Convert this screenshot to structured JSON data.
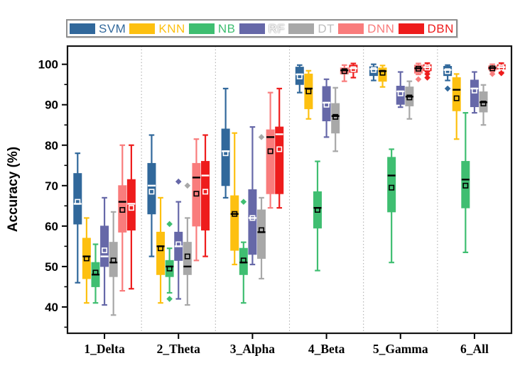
{
  "legend": {
    "items": [
      {
        "label": "SVM",
        "swatch_color": "#31689b",
        "label_color": "#31689b",
        "label_shadow": false
      },
      {
        "label": "KNN",
        "swatch_color": "#fdc010",
        "label_color": "#fdc010",
        "label_shadow": false
      },
      {
        "label": "NB",
        "swatch_color": "#3fbe71",
        "label_color": "#3fbe71",
        "label_shadow": false
      },
      {
        "label": "RF",
        "swatch_color": "#6668a8",
        "label_color": "#f8f8f8",
        "label_shadow": true
      },
      {
        "label": "DT",
        "swatch_color": "#a8a8a8",
        "label_color": "#bdbdbd",
        "label_shadow": false
      },
      {
        "label": "DNN",
        "swatch_color": "#f97c7c",
        "label_color": "#f97c7c",
        "label_shadow": false
      },
      {
        "label": "DBN",
        "swatch_color": "#ee1c1c",
        "label_color": "#ee1c1c",
        "label_shadow": false
      }
    ]
  },
  "chart_data": {
    "type": "boxplot",
    "title": "",
    "xlabel": "",
    "ylabel": "Accuracy (%)",
    "categories": [
      "1_Delta",
      "2_Theta",
      "3_Alpha",
      "4_Beta",
      "5_Gamma",
      "6_All"
    ],
    "yticks": [
      40,
      50,
      60,
      70,
      80,
      90,
      100
    ],
    "yticks_minor": [
      35,
      45,
      55,
      65,
      75,
      85,
      95
    ],
    "ylim": [
      33.5,
      104.5
    ],
    "grid": "dashed vertical separators between categories",
    "legend_position": "top",
    "series": [
      {
        "name": "SVM",
        "color": "#31689b",
        "line": "#ffffff",
        "boxes": [
          {
            "low": 46,
            "q1": 60.5,
            "median": 65.5,
            "q3": 73,
            "high": 78,
            "mean": 66,
            "outliers": []
          },
          {
            "low": 52.5,
            "q1": 63,
            "median": 70,
            "q3": 75.5,
            "high": 82.5,
            "mean": 68.5,
            "outliers": []
          },
          {
            "low": 67,
            "q1": 70,
            "median": 78.5,
            "q3": 84,
            "high": 94,
            "mean": 78,
            "outliers": []
          },
          {
            "low": 93,
            "q1": 95,
            "median": 97.5,
            "q3": 99.3,
            "high": 99.8,
            "mean": 97,
            "outliers": []
          },
          {
            "low": 96,
            "q1": 97.2,
            "median": 98.8,
            "q3": 99.4,
            "high": 100,
            "mean": 98.6,
            "outliers": []
          },
          {
            "low": 96,
            "q1": 97.2,
            "median": 98.6,
            "q3": 99.5,
            "high": 99.8,
            "mean": 98.3,
            "outliers": [
              94
            ]
          }
        ]
      },
      {
        "name": "KNN",
        "color": "#fdc010",
        "line": "#000000",
        "boxes": [
          {
            "low": 41,
            "q1": 47,
            "median": 52.5,
            "q3": 57,
            "high": 62,
            "mean": 52,
            "outliers": []
          },
          {
            "low": 41,
            "q1": 48,
            "median": 55,
            "q3": 58.5,
            "high": 67,
            "mean": 54.5,
            "outliers": []
          },
          {
            "low": 50.5,
            "q1": 54,
            "median": 63,
            "q3": 67.5,
            "high": 83,
            "mean": 63,
            "outliers": []
          },
          {
            "low": 86.5,
            "q1": 89,
            "median": 94,
            "q3": 97.6,
            "high": 98.4,
            "mean": 93.3,
            "outliers": []
          },
          {
            "low": 94.4,
            "q1": 95.8,
            "median": 98.3,
            "q3": 99.1,
            "high": 99.7,
            "mean": 97.9,
            "outliers": []
          },
          {
            "low": 81.5,
            "q1": 88.5,
            "median": 93.7,
            "q3": 96.7,
            "high": 97.6,
            "mean": 91.6,
            "outliers": []
          }
        ]
      },
      {
        "name": "NB",
        "color": "#3fbe71",
        "line": "#000000",
        "boxes": [
          {
            "low": 41,
            "q1": 45,
            "median": 48,
            "q3": 51,
            "high": 55.5,
            "mean": 48.5,
            "outliers": []
          },
          {
            "low": 43.5,
            "q1": 47.5,
            "median": 50,
            "q3": 51.5,
            "high": 54.5,
            "mean": 49.5,
            "outliers": [
              60.5,
              42
            ]
          },
          {
            "low": 41,
            "q1": 48,
            "median": 51,
            "q3": 54.5,
            "high": 56,
            "mean": 51.5,
            "outliers": [
              66
            ]
          },
          {
            "low": 49,
            "q1": 59.5,
            "median": 64.5,
            "q3": 68.5,
            "high": 76,
            "mean": 64,
            "outliers": []
          },
          {
            "low": 51,
            "q1": 63.5,
            "median": 72.5,
            "q3": 77,
            "high": 79,
            "mean": 69.5,
            "outliers": []
          },
          {
            "low": 53.5,
            "q1": 64.5,
            "median": 71.5,
            "q3": 76,
            "high": 88,
            "mean": 70,
            "outliers": []
          }
        ]
      },
      {
        "name": "RF",
        "color": "#6668a8",
        "line": "#ffffff",
        "boxes": [
          {
            "low": 40.5,
            "q1": 50,
            "median": 52.5,
            "q3": 60,
            "high": 67,
            "mean": 54,
            "outliers": []
          },
          {
            "low": 42,
            "q1": 51.5,
            "median": 55,
            "q3": 58.5,
            "high": 66,
            "mean": 55.5,
            "outliers": [
              71
            ]
          },
          {
            "low": 50.5,
            "q1": 53,
            "median": 62,
            "q3": 69,
            "high": 84.5,
            "mean": 62,
            "outliers": []
          },
          {
            "low": 82,
            "q1": 86,
            "median": 90.5,
            "q3": 94.5,
            "high": 96.3,
            "mean": 90,
            "outliers": []
          },
          {
            "low": 89.4,
            "q1": 90.1,
            "median": 93.3,
            "q3": 94.6,
            "high": 98.1,
            "mean": 92.8,
            "outliers": []
          },
          {
            "low": 88,
            "q1": 89.5,
            "median": 94,
            "q3": 96.1,
            "high": 98.1,
            "mean": 93.5,
            "outliers": []
          }
        ]
      },
      {
        "name": "DT",
        "color": "#a8a8a8",
        "line": "#000000",
        "boxes": [
          {
            "low": 38,
            "q1": 47.5,
            "median": 51,
            "q3": 56,
            "high": 63.5,
            "mean": 51.5,
            "outliers": []
          },
          {
            "low": 40.5,
            "q1": 48,
            "median": 50,
            "q3": 56,
            "high": 62,
            "mean": 52.5,
            "outliers": [
              70
            ]
          },
          {
            "low": 47,
            "q1": 52,
            "median": 58.5,
            "q3": 64,
            "high": 67,
            "mean": 59,
            "outliers": [
              82
            ]
          },
          {
            "low": 78.5,
            "q1": 83,
            "median": 87.2,
            "q3": 90.3,
            "high": 94.2,
            "mean": 87,
            "outliers": []
          },
          {
            "low": 86.5,
            "q1": 89.7,
            "median": 92,
            "q3": 94.4,
            "high": 95.8,
            "mean": 91.8,
            "outliers": []
          },
          {
            "low": 85,
            "q1": 88.2,
            "median": 90.6,
            "q3": 93.2,
            "high": 94.9,
            "mean": 90.3,
            "outliers": []
          }
        ]
      },
      {
        "name": "DNN",
        "color": "#f97c7c",
        "line": "#000000",
        "boxes": [
          {
            "low": 44,
            "q1": 58.5,
            "median": 66,
            "q3": 70,
            "high": 80,
            "mean": 64,
            "outliers": []
          },
          {
            "low": 51.5,
            "q1": 60,
            "median": 72,
            "q3": 75.5,
            "high": 81.5,
            "mean": 68,
            "outliers": []
          },
          {
            "low": 64.5,
            "q1": 68,
            "median": 82,
            "q3": 83.8,
            "high": 93,
            "mean": 78.5,
            "outliers": []
          },
          {
            "low": 95.8,
            "q1": 97.6,
            "median": 98.5,
            "q3": 99.1,
            "high": 99.8,
            "mean": 98.3,
            "outliers": []
          },
          {
            "low": 97.5,
            "q1": 97.8,
            "median": 99,
            "q3": 99.8,
            "high": 100.2,
            "mean": 98.9,
            "outliers": [
              96.3
            ]
          },
          {
            "low": 98.2,
            "q1": 98.6,
            "median": 99.1,
            "q3": 99.6,
            "high": 100,
            "mean": 99,
            "outliers": [
              97.6
            ]
          }
        ]
      },
      {
        "name": "DBN",
        "color": "#ee1c1c",
        "line": "#ffffff",
        "boxes": [
          {
            "low": 44.5,
            "q1": 59,
            "median": 65.5,
            "q3": 71.5,
            "high": 80,
            "mean": 64.5,
            "outliers": []
          },
          {
            "low": 52.5,
            "q1": 59,
            "median": 72.5,
            "q3": 76,
            "high": 82.5,
            "mean": 68.5,
            "outliers": []
          },
          {
            "low": 64.5,
            "q1": 68,
            "median": 82.7,
            "q3": 84.5,
            "high": 94,
            "mean": 79,
            "outliers": []
          },
          {
            "low": 96.7,
            "q1": 98,
            "median": 99,
            "q3": 99.8,
            "high": 100.2,
            "mean": 98.8,
            "outliers": []
          },
          {
            "low": 98.2,
            "q1": 98.4,
            "median": 99.3,
            "q3": 99.9,
            "high": 100.3,
            "mean": 99.2,
            "outliers": [
              97.6,
              96.7
            ]
          },
          {
            "low": 98,
            "q1": 98.8,
            "median": 99.3,
            "q3": 99.9,
            "high": 100.3,
            "mean": 99.2,
            "outliers": [
              97.8
            ]
          }
        ]
      }
    ]
  }
}
